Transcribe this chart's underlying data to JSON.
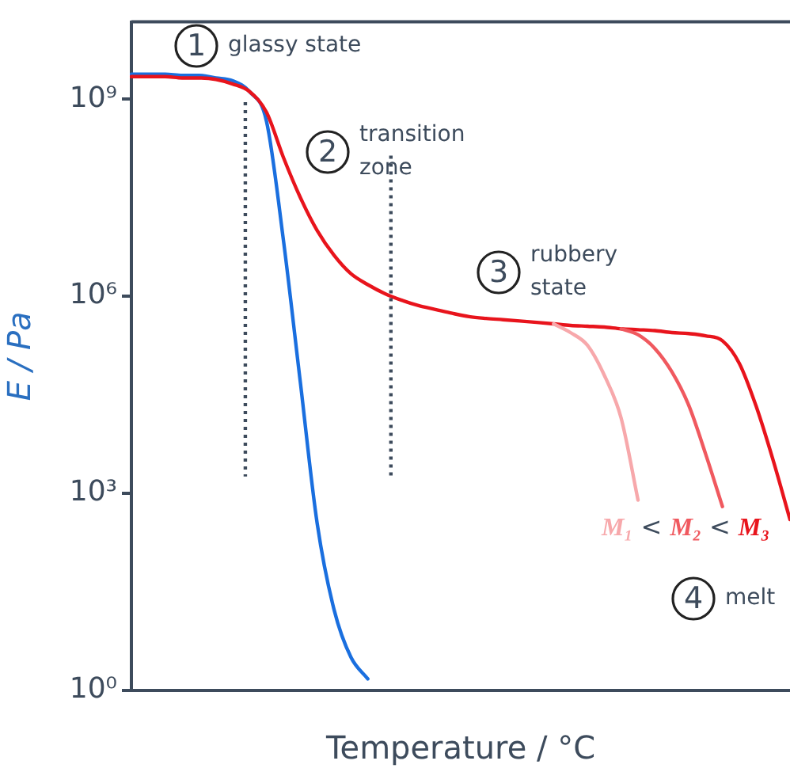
{
  "chart_data": {
    "type": "line",
    "xlabel": "Temperature / °C",
    "ylabel": "E / Pa",
    "categories": [
      null,
      null,
      null,
      null,
      null,
      null,
      null,
      null,
      null,
      null,
      null,
      null,
      null,
      null,
      null,
      null,
      null,
      null,
      null,
      null,
      null,
      null,
      null,
      null,
      null,
      null,
      null,
      null,
      null,
      null,
      null,
      null,
      null,
      null,
      null,
      null,
      null,
      null,
      null,
      null
    ],
    "series": [
      {
        "name": "M₁",
        "color": "#f7a8ab",
        "values": [
          null,
          null,
          null,
          null,
          null,
          null,
          null,
          null,
          null,
          null,
          null,
          null,
          null,
          null,
          null,
          null,
          null,
          null,
          null,
          null,
          null,
          null,
          null,
          null,
          null,
          380000.0,
          280000.0,
          180000.0,
          63000.0,
          14000.0,
          790,
          null,
          null,
          null,
          null,
          null,
          null,
          null,
          null,
          null
        ]
      },
      {
        "name": "M₂",
        "color": "#f0595f",
        "values": [
          null,
          null,
          null,
          null,
          null,
          null,
          null,
          null,
          null,
          null,
          null,
          null,
          null,
          null,
          null,
          null,
          null,
          null,
          null,
          null,
          null,
          null,
          null,
          null,
          null,
          null,
          null,
          null,
          null,
          320000.0,
          260000.0,
          160000.0,
          71000.0,
          22000.0,
          4000.0,
          630,
          null,
          null,
          null,
          null
        ]
      },
      {
        "name": "M₃",
        "color": "#e8141c",
        "values": [
          2200000000.0,
          2200000000.0,
          2200000000.0,
          2100000000.0,
          2100000000.0,
          2000000000.0,
          1700000000.0,
          1300000000.0,
          630000000.0,
          130000000.0,
          32000000.0,
          10000000.0,
          4200000.0,
          2200000.0,
          1500000.0,
          1100000.0,
          870000.0,
          720000.0,
          630000.0,
          550000.0,
          490000.0,
          460000.0,
          440000.0,
          420000.0,
          400000.0,
          380000.0,
          360000.0,
          350000.0,
          340000.0,
          320000.0,
          310000.0,
          300000.0,
          280000.0,
          270000.0,
          250000.0,
          210000.0,
          95000.0,
          21000.0,
          3200.0,
          400
        ]
      },
      {
        "color": "#1a6fdf",
        "values": [
          2400000000.0,
          2400000000.0,
          2400000000.0,
          2300000000.0,
          2300000000.0,
          2100000000.0,
          1900000000.0,
          1300000000.0,
          460000000.0,
          7200000.0,
          50000.0,
          350,
          17,
          3.2,
          1.5,
          null,
          null,
          null,
          null,
          null,
          null,
          null,
          null,
          null,
          null,
          null,
          null,
          null,
          null,
          null,
          null,
          null,
          null,
          null,
          null,
          null,
          null,
          null,
          null,
          null
        ]
      }
    ],
    "log": "y",
    "ylim": [
      1,
      15000000000.0
    ],
    "yticks": [
      {
        "value": 1,
        "label": "10⁰"
      },
      {
        "value": 1000,
        "label": "10³"
      },
      {
        "value": 1000000,
        "label": "10⁶"
      },
      {
        "value": 1000000000,
        "label": "10⁹"
      }
    ],
    "annotations": [
      "1",
      "glassy state",
      "2",
      "transition zone",
      "3",
      "rubbery state",
      "4",
      "melt",
      "<",
      "<"
    ],
    "grid": false,
    "legend": false,
    "marker": "none",
    "line_style": "solid"
  }
}
